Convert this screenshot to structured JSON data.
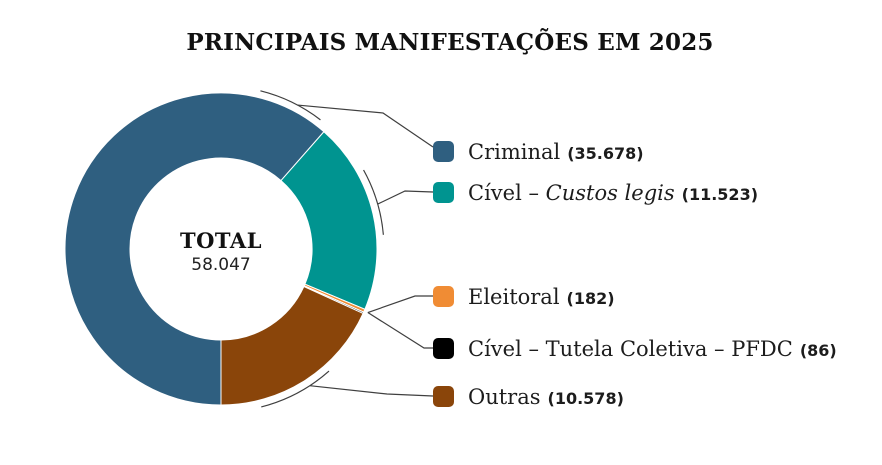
{
  "chart_data": {
    "type": "pie",
    "donut": true,
    "title": "PRINCIPAIS MANIFESTAÇÕES EM 2025",
    "center": {
      "label": "TOTAL",
      "value": 58047,
      "value_display": "58.047"
    },
    "legend_position": "right",
    "start_angle_deg": 180,
    "direction": "clockwise",
    "background": "#ffffff",
    "leader_line_color": "#3f3f3f",
    "segments": [
      {
        "id": "criminal",
        "label": "Criminal",
        "label_parts": [
          {
            "text": "Criminal",
            "italic": false
          }
        ],
        "value": 35678,
        "value_display": "(35.678)",
        "color": "#2F5F80"
      },
      {
        "id": "civel-custos-legis",
        "label": "Cível – Custos legis",
        "label_parts": [
          {
            "text": "Cível – ",
            "italic": false
          },
          {
            "text": "Custos legis",
            "italic": true
          }
        ],
        "value": 11523,
        "value_display": "(11.523)",
        "color": "#009490"
      },
      {
        "id": "eleitoral",
        "label": "Eleitoral",
        "label_parts": [
          {
            "text": "Eleitoral",
            "italic": false
          }
        ],
        "value": 182,
        "value_display": "(182)",
        "color": "#F08C34"
      },
      {
        "id": "civel-tutela-coletiva-pfdc",
        "label": "Cível – Tutela Coletiva – PFDC",
        "label_parts": [
          {
            "text": "Cível – Tutela Coletiva – PFDC",
            "italic": false
          }
        ],
        "value": 86,
        "value_display": "(86)",
        "color": "#000000"
      },
      {
        "id": "outras",
        "label": "Outras",
        "label_parts": [
          {
            "text": "Outras",
            "italic": false
          }
        ],
        "value": 10578,
        "value_display": "(10.578)",
        "color": "#8A450A"
      }
    ]
  }
}
